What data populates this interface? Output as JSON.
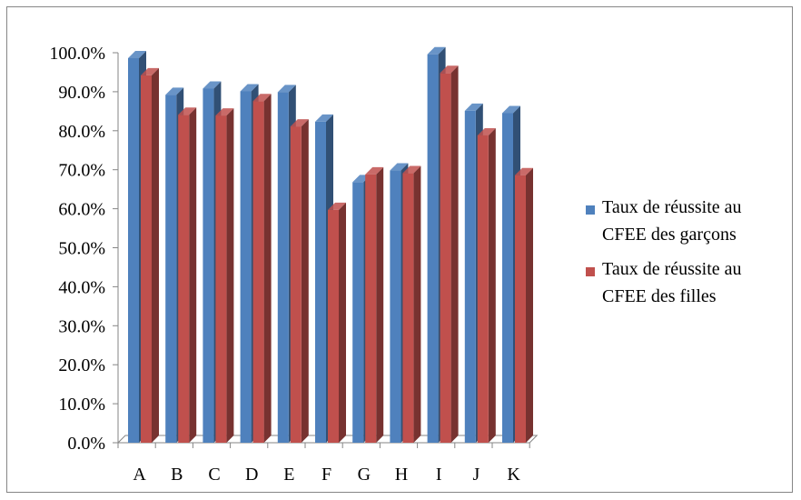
{
  "chart_data": {
    "type": "bar",
    "categories": [
      "A",
      "B",
      "C",
      "D",
      "E",
      "F",
      "G",
      "H",
      "I",
      "J",
      "K"
    ],
    "series": [
      {
        "name_lines": [
          "Taux de réussite au",
          "CFEE des  garçons"
        ],
        "color": "#4F81BD",
        "values": [
          98.6,
          89.2,
          90.8,
          90.1,
          89.9,
          82.3,
          66.8,
          69.8,
          99.6,
          85.1,
          84.5
        ]
      },
      {
        "name_lines": [
          "Taux de réussite au",
          "CFEE des filles"
        ],
        "color": "#C0504D",
        "values": [
          94.2,
          84.1,
          83.9,
          87.6,
          81.1,
          59.7,
          68.8,
          69.1,
          94.8,
          78.8,
          68.6
        ]
      }
    ],
    "y_tick_labels": [
      "0.0%",
      "10.0%",
      "20.0%",
      "30.0%",
      "40.0%",
      "50.0%",
      "60.0%",
      "70.0%",
      "80.0%",
      "90.0%",
      "100.0%"
    ],
    "ylim": [
      0,
      100
    ],
    "grid": false,
    "legend_position": "right"
  }
}
